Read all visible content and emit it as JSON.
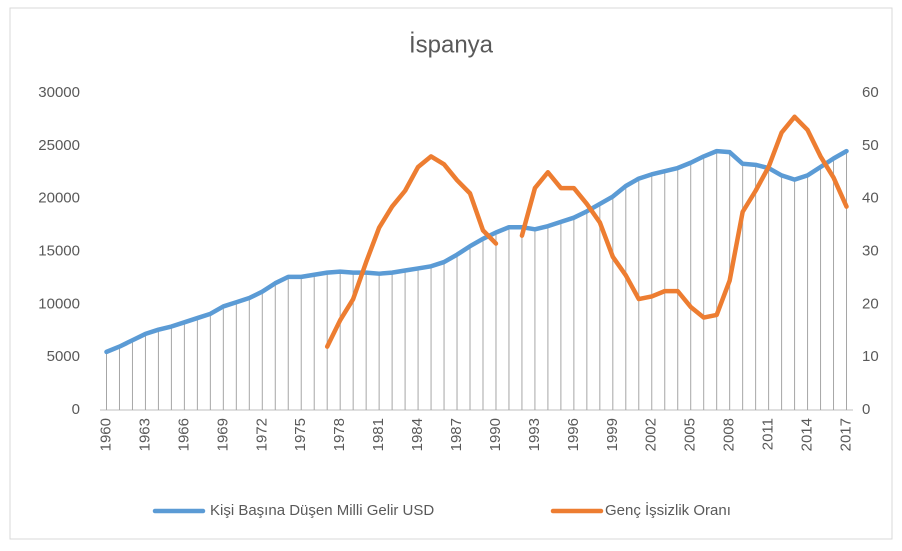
{
  "chart_data": {
    "type": "line",
    "title": "İspanya",
    "categories": [
      1960,
      null,
      null,
      1963,
      null,
      null,
      1966,
      null,
      null,
      1969,
      null,
      null,
      1972,
      null,
      null,
      1975,
      null,
      null,
      1978,
      null,
      null,
      1981,
      null,
      null,
      1984,
      null,
      null,
      1987,
      null,
      null,
      1990,
      null,
      null,
      1993,
      null,
      null,
      1996,
      null,
      null,
      1999,
      null,
      null,
      2002,
      null,
      null,
      2005,
      null,
      null,
      2008,
      null,
      null,
      2011,
      null,
      null,
      2014,
      null,
      null,
      2017
    ],
    "series": [
      {
        "name": "Kişi Başına Düşen Milli Gelir USD",
        "color": "#5b9bd5",
        "axis": "y",
        "values": [
          5500,
          6000,
          6600,
          7200,
          7600,
          7900,
          8300,
          8700,
          9100,
          9800,
          10200,
          10600,
          11200,
          12000,
          12600,
          12600,
          12800,
          13000,
          13100,
          13000,
          13000,
          12900,
          13000,
          13200,
          13400,
          13600,
          14000,
          14700,
          15500,
          16200,
          16800,
          17300,
          17300,
          17100,
          17400,
          17800,
          18200,
          18800,
          19500,
          20200,
          21200,
          21900,
          22300,
          22600,
          22900,
          23400,
          24000,
          24500,
          24400,
          23300,
          23200,
          22900,
          22200,
          21800,
          22200,
          23000,
          23800,
          24500
        ]
      },
      {
        "name": "Genç İşsizlik Oranı",
        "color": "#ed7d31",
        "axis": "y2",
        "values": [
          null,
          null,
          null,
          null,
          null,
          null,
          null,
          null,
          null,
          null,
          null,
          null,
          null,
          null,
          null,
          null,
          null,
          12,
          17,
          21,
          28,
          34.5,
          38.5,
          41.5,
          46,
          48,
          46.5,
          43.5,
          41,
          34,
          31.5,
          null,
          33,
          42,
          45,
          42,
          42,
          39,
          35.5,
          29,
          25.5,
          21,
          21.5,
          22.5,
          22.5,
          19.5,
          17.5,
          18,
          24.5,
          37.5,
          41.5,
          46,
          52.5,
          55.5,
          53,
          48,
          44,
          38.5
        ]
      }
    ],
    "ylim": [
      0,
      30000
    ],
    "yticks": [
      0,
      5000,
      10000,
      15000,
      20000,
      25000,
      30000
    ],
    "y2lim": [
      0,
      60
    ],
    "y2ticks": [
      0,
      10,
      20,
      30,
      40,
      50,
      60
    ],
    "drop_lines": true,
    "legend": "bottom"
  }
}
